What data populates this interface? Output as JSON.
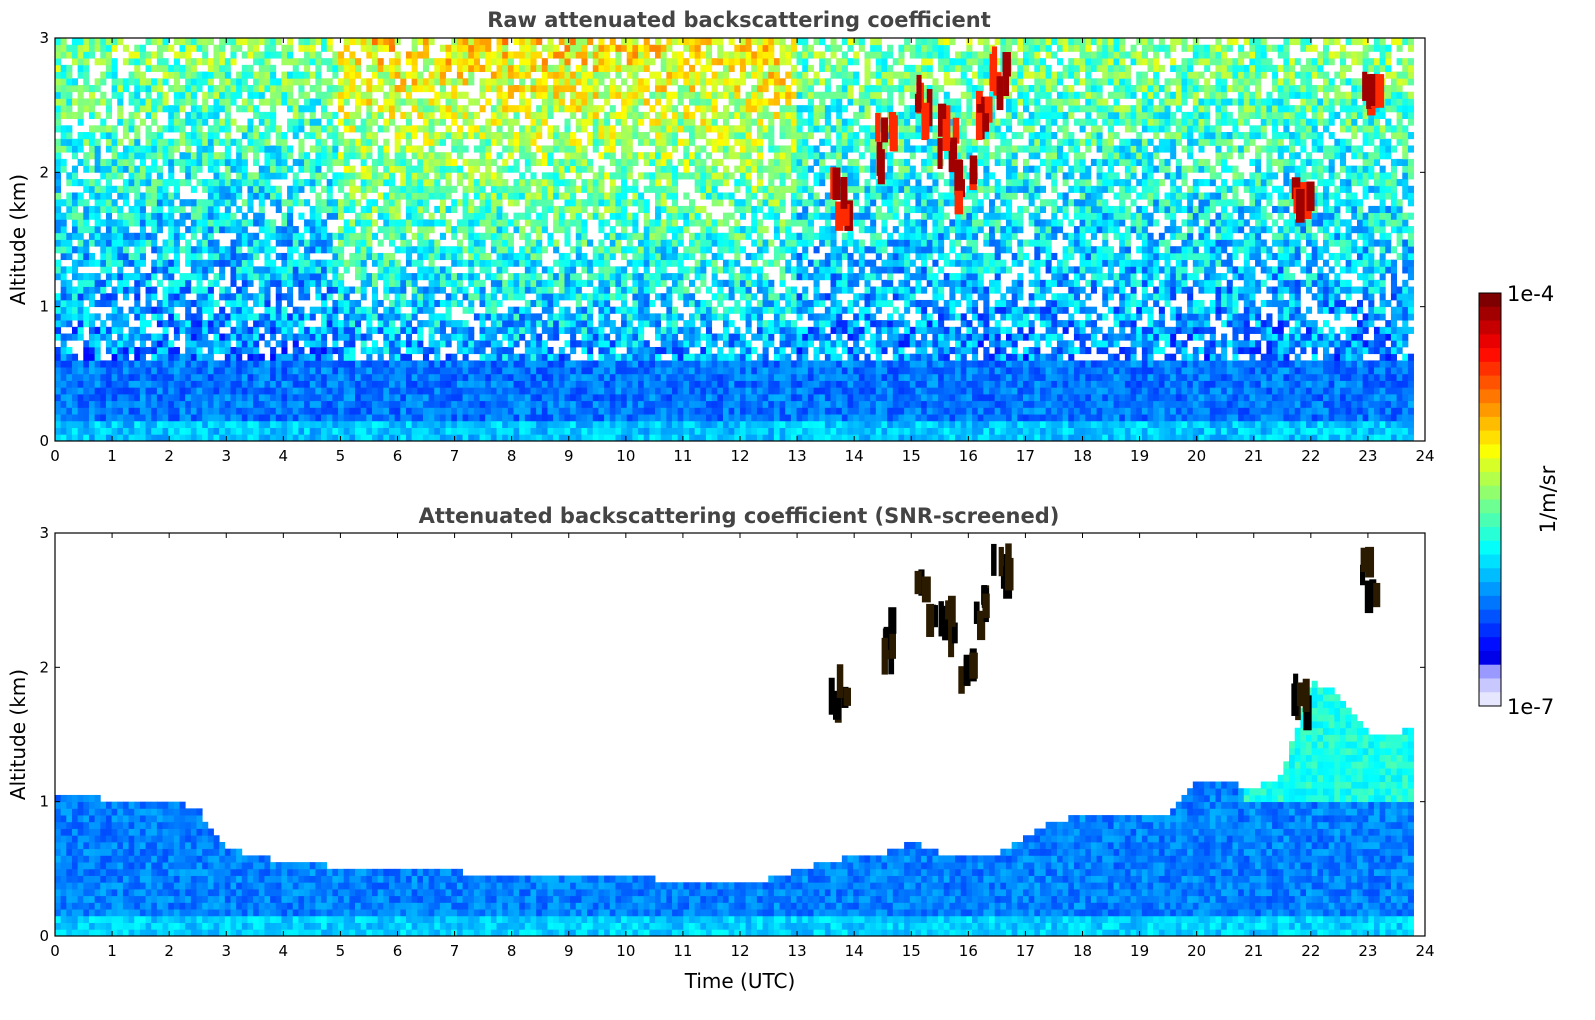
{
  "chart_data": [
    {
      "type": "heatmap",
      "title": "Raw attenuated backscattering coefficient",
      "xlabel": "",
      "ylabel": "Altitude (km)",
      "xlim": [
        0,
        24
      ],
      "ylim": [
        0,
        3
      ],
      "xticks": [
        "0",
        "1",
        "2",
        "3",
        "4",
        "5",
        "6",
        "7",
        "8",
        "9",
        "10",
        "11",
        "12",
        "13",
        "14",
        "15",
        "16",
        "17",
        "18",
        "19",
        "20",
        "21",
        "22",
        "23",
        "24"
      ],
      "yticks": [
        "0",
        "1",
        "2",
        "3"
      ],
      "colorscale": "jet",
      "features": [
        {
          "kind": "boundary_layer",
          "x": [
            0,
            23.8
          ],
          "y": [
            0,
            0.6
          ],
          "level": 0.35
        },
        {
          "kind": "noise_background",
          "x": [
            0,
            23.8
          ],
          "y": [
            0.6,
            3
          ],
          "level": 0.5
        },
        {
          "kind": "cloud",
          "x": 13.7,
          "y": 1.9,
          "level": 1.0
        },
        {
          "kind": "cloud",
          "x": 14.5,
          "y": 2.3,
          "level": 1.0
        },
        {
          "kind": "cloud",
          "x": 15.2,
          "y": 2.6,
          "level": 1.0
        },
        {
          "kind": "cloud",
          "x": 15.6,
          "y": 2.4,
          "level": 1.0
        },
        {
          "kind": "cloud",
          "x": 15.9,
          "y": 2.0,
          "level": 1.0
        },
        {
          "kind": "cloud",
          "x": 16.2,
          "y": 2.5,
          "level": 1.0
        },
        {
          "kind": "cloud",
          "x": 16.5,
          "y": 2.85,
          "level": 1.0
        },
        {
          "kind": "cloud",
          "x": 21.8,
          "y": 1.9,
          "level": 1.0
        },
        {
          "kind": "cloud",
          "x": 23.0,
          "y": 2.75,
          "level": 1.0
        }
      ]
    },
    {
      "type": "heatmap",
      "title": "Attenuated backscattering coefficient (SNR-screened)",
      "xlabel": "Time (UTC)",
      "ylabel": "Altitude (km)",
      "xlim": [
        0,
        24
      ],
      "ylim": [
        0,
        3
      ],
      "xticks": [
        "0",
        "1",
        "2",
        "3",
        "4",
        "5",
        "6",
        "7",
        "8",
        "9",
        "10",
        "11",
        "12",
        "13",
        "14",
        "15",
        "16",
        "17",
        "18",
        "19",
        "20",
        "21",
        "22",
        "23",
        "24"
      ],
      "yticks": [
        "0",
        "1",
        "2",
        "3"
      ],
      "colorscale": "jet",
      "boundary_layer_top": {
        "x": [
          0,
          0.5,
          1,
          1.5,
          2,
          2.5,
          3,
          3.5,
          4,
          4.5,
          5,
          6,
          7,
          8,
          9,
          10,
          11,
          12,
          12.5,
          13,
          13.5,
          14,
          14.5,
          15,
          15.5,
          16,
          16.5,
          17,
          17.5,
          18,
          18.5,
          19,
          19.5,
          20,
          20.5,
          21,
          21.5,
          22,
          22.5,
          23,
          23.5,
          23.8
        ],
        "y": [
          1.05,
          1.05,
          1.0,
          1.0,
          1.0,
          0.95,
          0.65,
          0.6,
          0.55,
          0.55,
          0.5,
          0.5,
          0.48,
          0.45,
          0.45,
          0.43,
          0.42,
          0.42,
          0.42,
          0.5,
          0.55,
          0.6,
          0.6,
          0.7,
          0.62,
          0.6,
          0.6,
          0.75,
          0.85,
          0.9,
          0.92,
          0.9,
          0.88,
          1.15,
          1.15,
          1.1,
          1.2,
          1.9,
          1.8,
          1.5,
          1.5,
          1.55
        ]
      },
      "features": [
        {
          "kind": "cloud",
          "x": 13.7,
          "y": 1.9,
          "level": 1.0
        },
        {
          "kind": "cloud",
          "x": 14.5,
          "y": 2.3,
          "level": 1.0
        },
        {
          "kind": "cloud",
          "x": 15.2,
          "y": 2.6,
          "level": 1.0
        },
        {
          "kind": "cloud",
          "x": 15.6,
          "y": 2.4,
          "level": 1.0
        },
        {
          "kind": "cloud",
          "x": 15.9,
          "y": 2.0,
          "level": 1.0
        },
        {
          "kind": "cloud",
          "x": 16.2,
          "y": 2.5,
          "level": 1.0
        },
        {
          "kind": "cloud",
          "x": 16.5,
          "y": 2.85,
          "level": 1.0
        },
        {
          "kind": "cloud",
          "x": 21.8,
          "y": 1.9,
          "level": 1.0
        },
        {
          "kind": "cloud",
          "x": 23.0,
          "y": 2.75,
          "level": 1.0
        }
      ]
    }
  ],
  "colorbar": {
    "label": "1/m/sr",
    "max_label": "1e-4",
    "min_label": "1e-7",
    "scale": "log"
  },
  "colors": {
    "title": "#444444",
    "jet": [
      "#00007f",
      "#0000ff",
      "#007fff",
      "#00ffff",
      "#7fff7f",
      "#ffff00",
      "#ff7f00",
      "#ff0000",
      "#7f0000"
    ]
  }
}
